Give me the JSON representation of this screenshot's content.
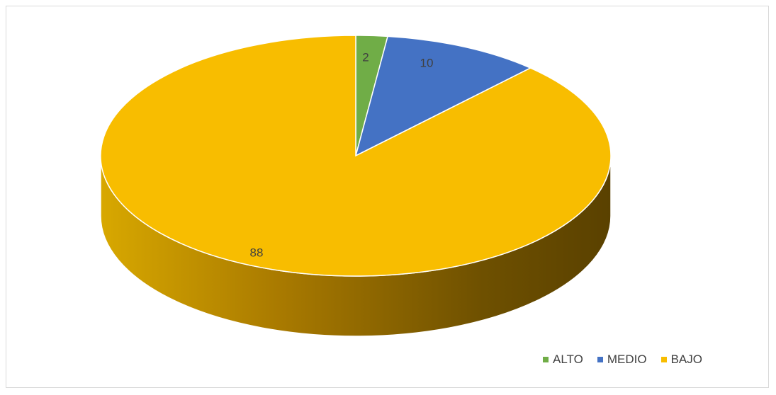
{
  "chart_data": {
    "type": "pie",
    "style": "3d",
    "legend_position": "bottom-right",
    "categories": [
      "ALTO",
      "MEDIO",
      "BAJO"
    ],
    "values": [
      2,
      10,
      88
    ],
    "colors": [
      "#70ad47",
      "#4472c4",
      "#f8bd00"
    ],
    "data_labels": [
      "2",
      "10",
      "88"
    ]
  }
}
